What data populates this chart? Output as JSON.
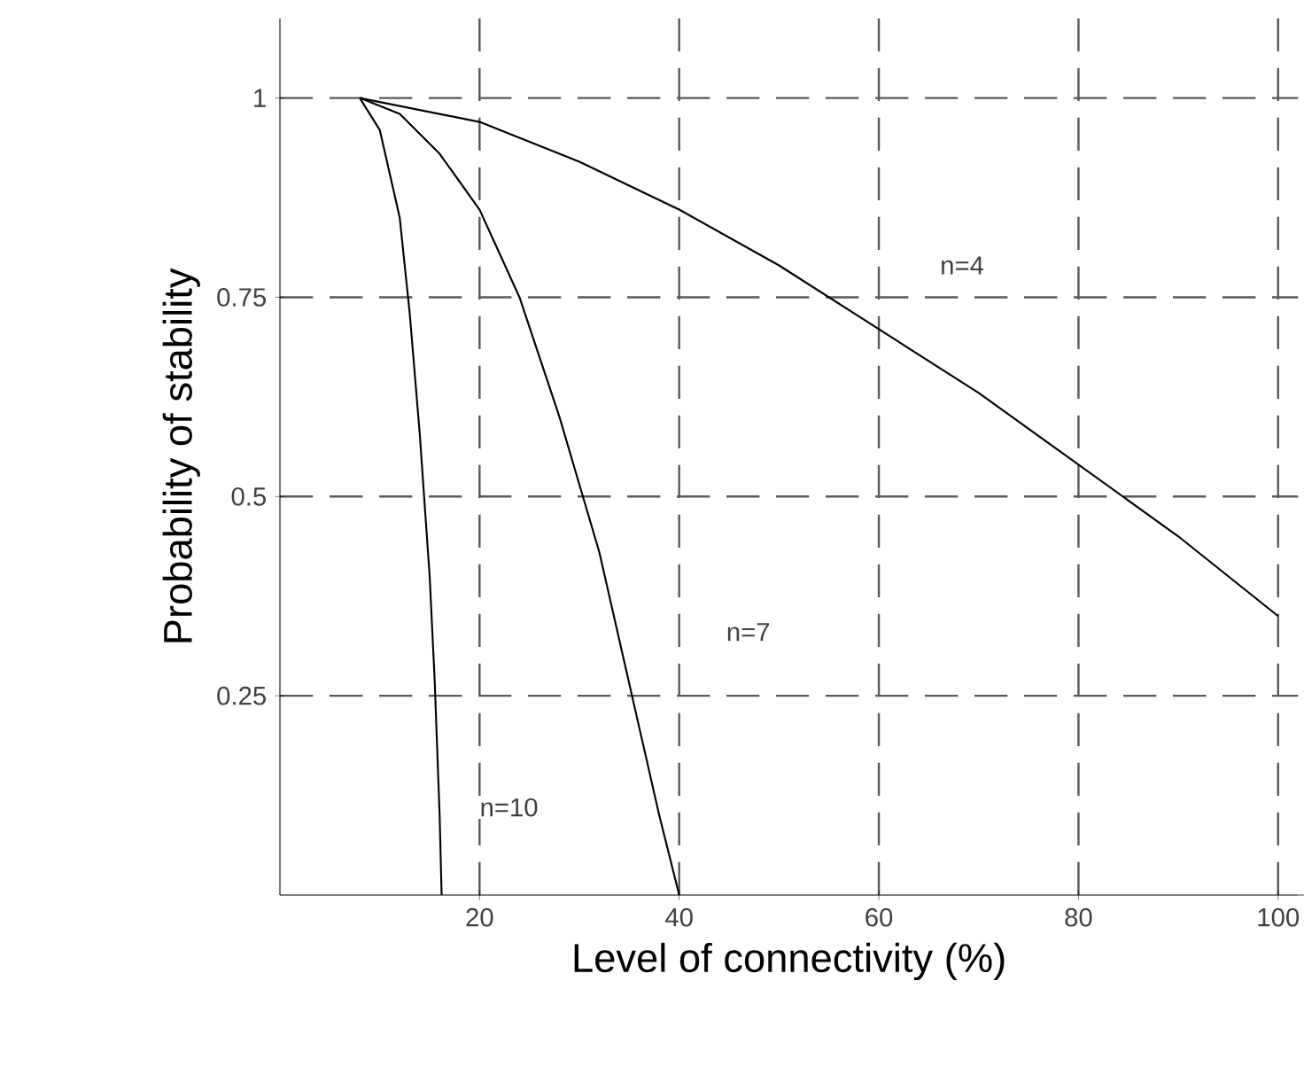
{
  "chart_data": {
    "type": "line",
    "xlabel": "Level of connectivity (%)",
    "ylabel": "Probability of stability",
    "xlim": [
      0,
      102
    ],
    "ylim": [
      0,
      1.1
    ],
    "xticks": [
      20,
      40,
      60,
      80,
      100
    ],
    "yticks": [
      0.25,
      0.5,
      0.75,
      1
    ],
    "grid": true,
    "marker": "none",
    "line_style": "solid",
    "series": [
      {
        "color": "#000000",
        "x": [
          8,
          20,
          30,
          40,
          50,
          60,
          70,
          80,
          90,
          100
        ],
        "values": [
          1,
          0.97,
          0.92,
          0.86,
          0.79,
          0.71,
          0.63,
          0.54,
          0.45,
          0.35
        ]
      },
      {
        "color": "#000000",
        "x": [
          8,
          12,
          16,
          20,
          24,
          28,
          32,
          36,
          38,
          40
        ],
        "values": [
          1,
          0.98,
          0.93,
          0.86,
          0.75,
          0.6,
          0.43,
          0.21,
          0.1,
          0
        ]
      },
      {
        "color": "#000000",
        "x": [
          8,
          10,
          12,
          13,
          14,
          15,
          15.5,
          16,
          16.2
        ],
        "values": [
          1,
          0.96,
          0.85,
          0.73,
          0.58,
          0.4,
          0.27,
          0.1,
          0
        ]
      }
    ],
    "annotations": [
      "n=4",
      "n=7",
      "n=10"
    ]
  }
}
